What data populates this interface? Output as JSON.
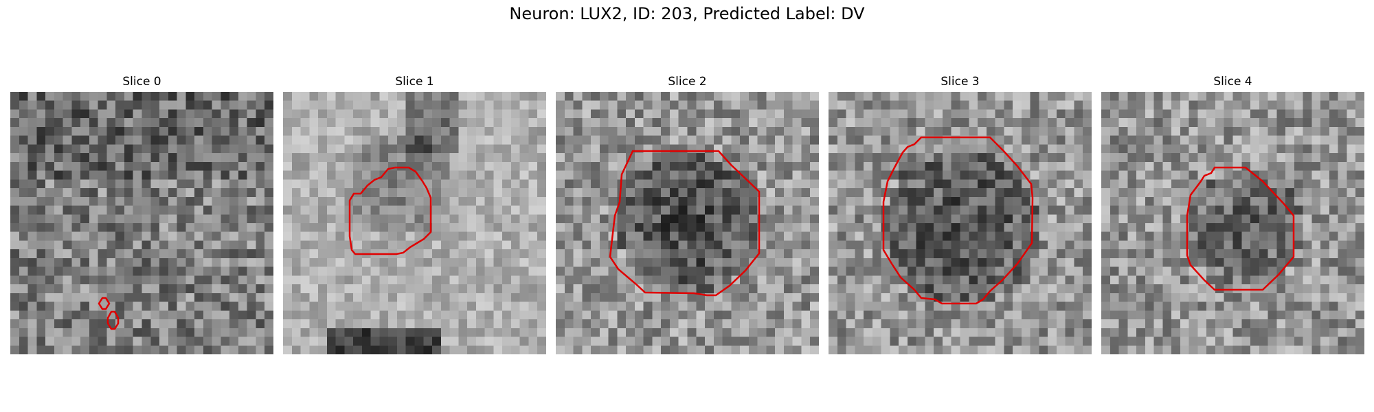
{
  "figure": {
    "title": "Neuron: LUX2, ID: 203, Predicted Label: DV"
  },
  "slices": [
    {
      "label": "Slice 0"
    },
    {
      "label": "Slice 1"
    },
    {
      "label": "Slice 2"
    },
    {
      "label": "Slice 3"
    },
    {
      "label": "Slice 4"
    }
  ],
  "colors": {
    "contour": "#e00000",
    "background": "#ffffff"
  }
}
